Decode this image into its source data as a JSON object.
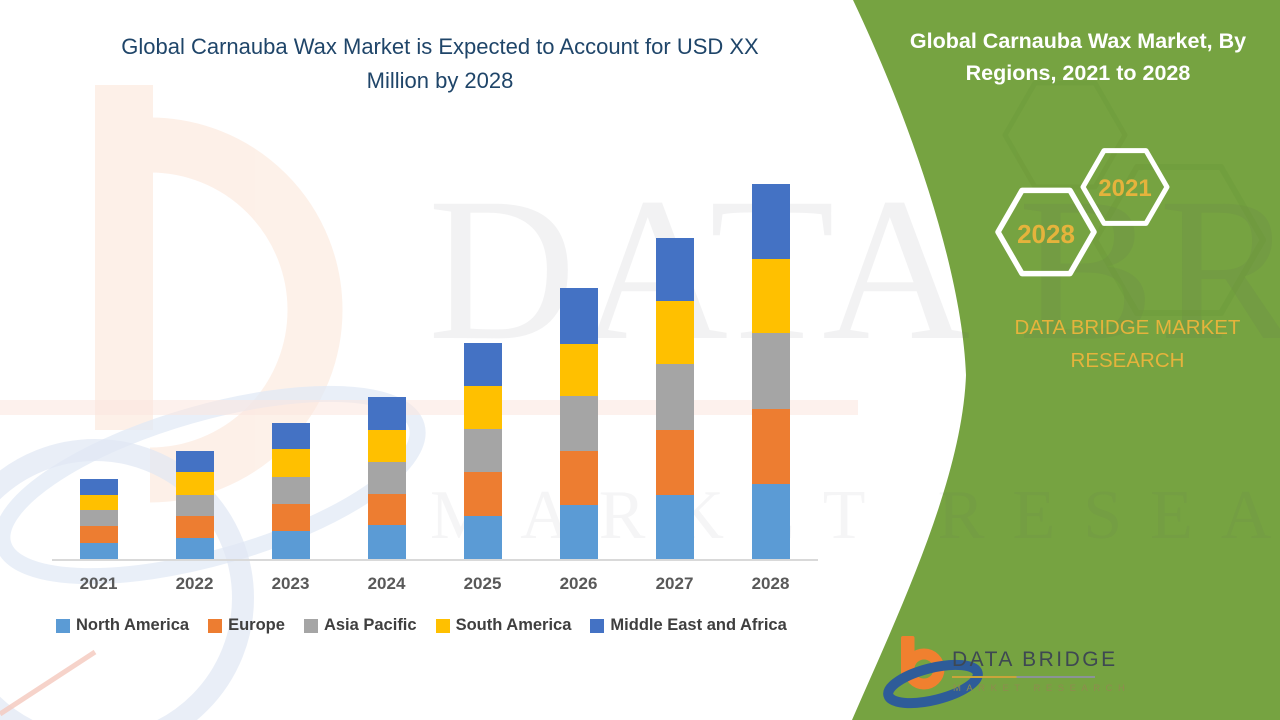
{
  "header": {
    "title": "Global Carnauba Wax Market is Expected to Account for USD XX Million by 2028"
  },
  "side_panel": {
    "title": "Global Carnauba Wax Market, By Regions, 2021 to 2028",
    "hexagon_back_year": "2028",
    "hexagon_front_year": "2021",
    "caption_line1": "DATA BRIDGE MARKET",
    "caption_line2": "RESEARCH"
  },
  "watermark": {
    "text": "DATA BRIDGE",
    "subtext": "MARKET RESEARCH"
  },
  "footer_logo": {
    "name": "DATA BRIDGE",
    "tagline": "MARKET RESEARCH"
  },
  "colors": {
    "panel_green": "#76A341",
    "title_navy": "#1F4569",
    "gold_text": "#E5B33C",
    "axis_label_gray": "#595959",
    "legend_text_gray": "#3F3F3F"
  },
  "chart_data": {
    "type": "bar",
    "stacked": true,
    "title": "Global Carnauba Wax Market is Expected to Account for USD XX Million by 2028",
    "categories": [
      "2021",
      "2022",
      "2023",
      "2024",
      "2025",
      "2026",
      "2027",
      "2028"
    ],
    "series": [
      {
        "name": "North America",
        "color": "#5B9BD5",
        "values": [
          16,
          21,
          28,
          34,
          43,
          54,
          64,
          75
        ]
      },
      {
        "name": "Europe",
        "color": "#ED7D31",
        "values": [
          17,
          22,
          27,
          31,
          44,
          54,
          65,
          75
        ]
      },
      {
        "name": "Asia Pacific",
        "color": "#A5A5A5",
        "values": [
          16,
          21,
          27,
          32,
          43,
          55,
          66,
          76
        ]
      },
      {
        "name": "South America",
        "color": "#FFC000",
        "values": [
          15,
          23,
          28,
          32,
          43,
          52,
          63,
          74
        ]
      },
      {
        "name": "Middle East and Africa",
        "color": "#4472C4",
        "values": [
          16,
          21,
          26,
          33,
          43,
          56,
          63,
          75
        ]
      }
    ],
    "xlabel": "",
    "ylabel": "",
    "value_axis_visible": false,
    "value_units": "arbitrary units (market value shown as USD XX Million placeholder)",
    "grid": false,
    "legend_position": "bottom"
  }
}
